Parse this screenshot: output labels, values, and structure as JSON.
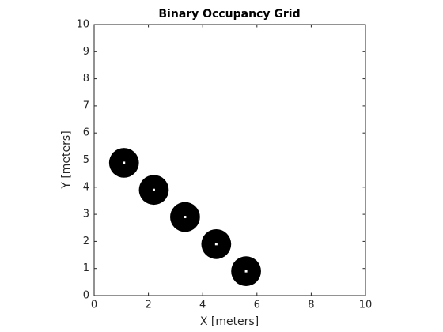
{
  "chart_data": {
    "type": "scatter",
    "title": "Binary Occupancy Grid",
    "x_label": "X [meters]",
    "y_label": "Y [meters]",
    "series": [
      {
        "color": "#000000",
        "x": [
          1.1,
          2.2,
          3.35,
          4.5,
          5.6
        ],
        "values": [
          4.9,
          3.9,
          2.9,
          1.9,
          0.9
        ],
        "sizes": [
          0.55,
          0.55,
          0.55,
          0.55,
          0.55
        ]
      }
    ],
    "xlim": [
      0,
      10
    ],
    "ylim": [
      0,
      10
    ],
    "xticks": [
      0,
      2,
      4,
      6,
      8,
      10
    ],
    "yticks": [
      0,
      1,
      2,
      3,
      4,
      5,
      6,
      7,
      8,
      9,
      10
    ],
    "grid": false
  }
}
